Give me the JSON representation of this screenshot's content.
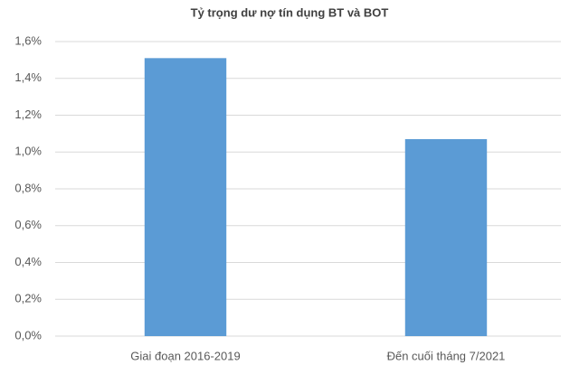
{
  "chart_data": {
    "type": "bar",
    "title": "Tỷ trọng dư nợ tín dụng BT và BOT",
    "categories": [
      "Giai đoạn 2016-2019",
      "Đến cuối tháng 7/2021"
    ],
    "values": [
      1.51,
      1.07
    ],
    "color": "#5b9bd5",
    "ylim": [
      0,
      1.6
    ],
    "yticks": [
      {
        "value": 0,
        "label": "0,0%"
      },
      {
        "value": 0.2,
        "label": "0,2%"
      },
      {
        "value": 0.4,
        "label": "0,4%"
      },
      {
        "value": 0.6,
        "label": "0,6%"
      },
      {
        "value": 0.8,
        "label": "0,8%"
      },
      {
        "value": 1.0,
        "label": "1,0%"
      },
      {
        "value": 1.2,
        "label": "1,2%"
      },
      {
        "value": 1.4,
        "label": "1,4%"
      },
      {
        "value": 1.6,
        "label": "1,6%"
      }
    ],
    "grid": true
  }
}
